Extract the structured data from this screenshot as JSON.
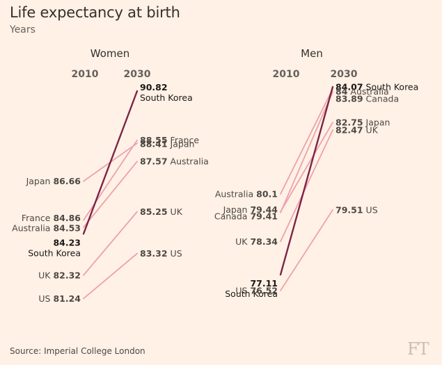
{
  "title": "Life expectancy at birth",
  "subtitle": "Years",
  "source": "Source: Imperial College London",
  "logo": "FT",
  "chart_data": {
    "type": "slope",
    "unit": "Years",
    "years": [
      "2010",
      "2030"
    ],
    "line_color": "#eda1ab",
    "highlight_color": "#7d2348",
    "panels": [
      {
        "id": "women",
        "title": "Women",
        "series": [
          {
            "name": "South Korea",
            "v2010": 84.23,
            "v2030": 90.82,
            "highlight": true
          },
          {
            "name": "France",
            "v2010": 84.86,
            "v2030": 88.55
          },
          {
            "name": "Japan",
            "v2010": 86.66,
            "v2030": 88.41
          },
          {
            "name": "Australia",
            "v2010": 84.53,
            "v2030": 87.57
          },
          {
            "name": "UK",
            "v2010": 82.32,
            "v2030": 85.25
          },
          {
            "name": "US",
            "v2010": 81.24,
            "v2030": 83.32
          }
        ]
      },
      {
        "id": "men",
        "title": "Men",
        "series": [
          {
            "name": "South Korea",
            "v2010": 77.11,
            "v2030": 84.07,
            "highlight": true
          },
          {
            "name": "Australia",
            "v2010": 80.1,
            "v2030": 84
          },
          {
            "name": "Canada",
            "v2010": 79.41,
            "v2030": 83.89
          },
          {
            "name": "Japan",
            "v2010": 79.44,
            "v2030": 82.75
          },
          {
            "name": "UK",
            "v2010": 78.34,
            "v2030": 82.47
          },
          {
            "name": "US",
            "v2010": 76.52,
            "v2030": 79.51
          }
        ]
      }
    ]
  }
}
